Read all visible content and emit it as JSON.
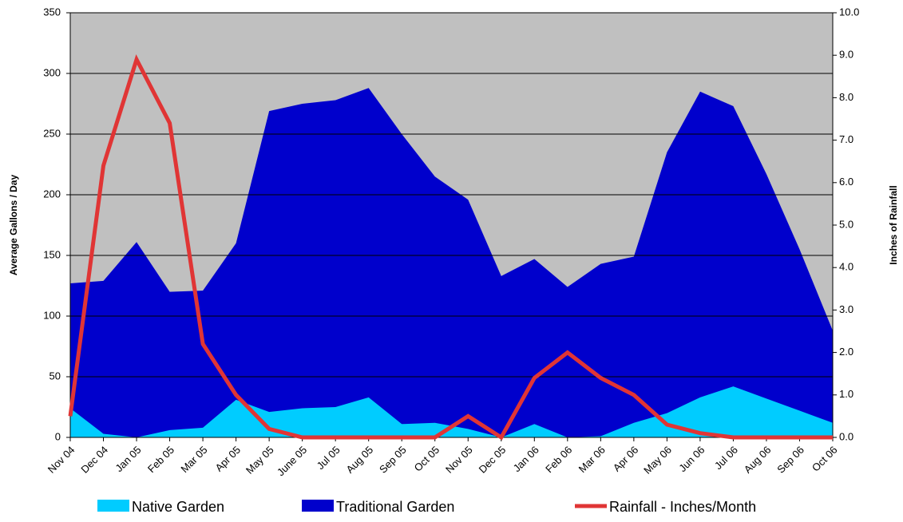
{
  "chart_data": {
    "type": "area",
    "categories": [
      "Nov 04",
      "Dec 04",
      "Jan 05",
      "Feb 05",
      "Mar 05",
      "Apr 05",
      "May 05",
      "June 05",
      "Jul 05",
      "Aug 05",
      "Sep 05",
      "Oct 05",
      "Nov 05",
      "Dec 05",
      "Jan 06",
      "Feb 06",
      "Mar 06",
      "Apr 06",
      "May 06",
      "Jun 06",
      "Jul 06",
      "Aug 06",
      "Sep 06",
      "Oct 06"
    ],
    "series": [
      {
        "name": "Native Garden",
        "color": "#00ccff",
        "type": "area",
        "values": [
          24,
          3,
          0,
          6,
          8,
          31,
          21,
          24,
          25,
          33,
          11,
          12,
          7,
          0,
          11,
          0,
          1,
          12,
          20,
          33,
          42,
          32,
          22,
          12
        ]
      },
      {
        "name": "Traditional Garden",
        "color": "#0000cc",
        "type": "area",
        "values": [
          127,
          129,
          161,
          120,
          121,
          160,
          269,
          275,
          278,
          288,
          250,
          215,
          196,
          133,
          147,
          124,
          143,
          149,
          235,
          285,
          273,
          217,
          155,
          88
        ]
      },
      {
        "name": "Rainfall - Inches/Month",
        "color": "#e03535",
        "type": "line",
        "axis": "y2",
        "values": [
          0.5,
          6.4,
          8.9,
          7.4,
          2.2,
          1.0,
          0.2,
          0,
          0,
          0,
          0,
          0,
          0.5,
          0,
          1.4,
          2.0,
          1.4,
          1.0,
          0.3,
          0.1,
          0,
          0,
          0,
          0
        ]
      }
    ],
    "ylabel": "Average Gallons / Day",
    "y2label": "Inches of Rainfall",
    "ylim": [
      0,
      350
    ],
    "yticks": [
      0,
      50,
      100,
      150,
      200,
      250,
      300,
      350
    ],
    "y2lim": [
      0,
      10
    ],
    "y2ticks": [
      {
        "value": 0,
        "label": "0.0"
      },
      {
        "value": 1,
        "label": "1.0"
      },
      {
        "value": 2,
        "label": "2.0"
      },
      {
        "value": 3,
        "label": "3.0"
      },
      {
        "value": 4,
        "label": "4.0"
      },
      {
        "value": 5,
        "label": "5.0"
      },
      {
        "value": 6,
        "label": "6.0"
      },
      {
        "value": 7,
        "label": "7.0"
      },
      {
        "value": 8,
        "label": "8.0"
      },
      {
        "value": 9,
        "label": "9.0"
      },
      {
        "value": 10,
        "label": "10.0"
      }
    ],
    "grid": true,
    "legend": "bottom",
    "background": "#c0c0c0"
  }
}
